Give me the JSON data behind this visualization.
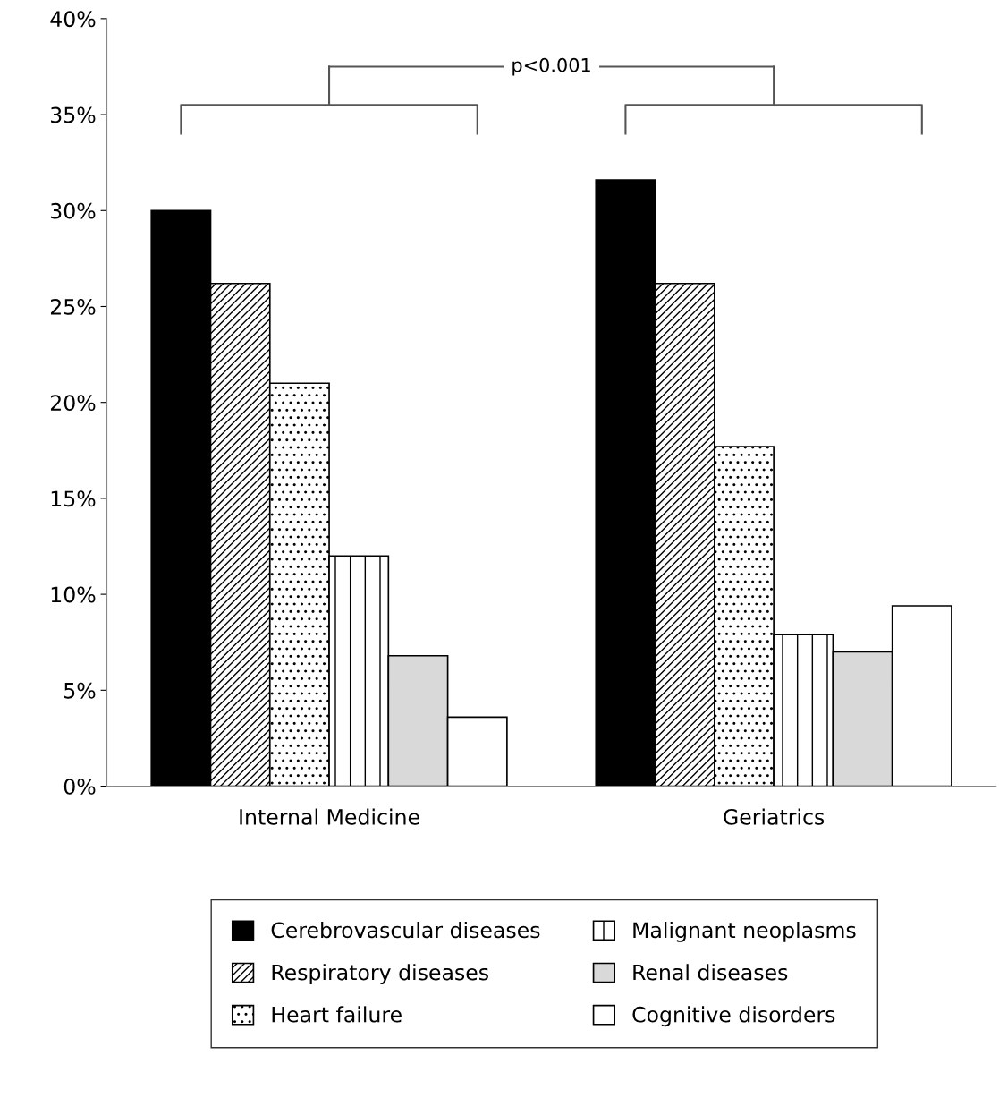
{
  "chart_data": {
    "type": "bar",
    "categories": [
      "Internal Medicine",
      "Geriatrics"
    ],
    "series": [
      {
        "name": "Cerebrovascular diseases",
        "color": "#000000",
        "values": [
          30.0,
          31.6
        ]
      },
      {
        "name": "Respiratory diseases",
        "color": "#000000",
        "values": [
          26.2,
          26.2
        ]
      },
      {
        "name": "Heart failure",
        "color": "#000000",
        "values": [
          21.0,
          17.7
        ]
      },
      {
        "name": "Malignant neoplasms",
        "color": "#000000",
        "values": [
          12.0,
          7.9
        ]
      },
      {
        "name": "Renal diseases",
        "color": "#d9d9d9",
        "values": [
          6.8,
          7.0
        ]
      },
      {
        "name": "Cognitive disorders",
        "color": "#ffffff",
        "values": [
          3.6,
          9.4
        ]
      }
    ],
    "ylim": [
      0,
      40
    ],
    "yticks": [
      {
        "value": 0,
        "label": "0%"
      },
      {
        "value": 5,
        "label": "5%"
      },
      {
        "value": 10,
        "label": "10%"
      },
      {
        "value": 15,
        "label": "15%"
      },
      {
        "value": 20,
        "label": "20%"
      },
      {
        "value": 25,
        "label": "25%"
      },
      {
        "value": 30,
        "label": "30%"
      },
      {
        "value": 35,
        "label": "35%"
      },
      {
        "value": 40,
        "label": "40%"
      }
    ],
    "annotations": [
      "p<0.001"
    ],
    "legend": "bottom",
    "grid": false
  }
}
